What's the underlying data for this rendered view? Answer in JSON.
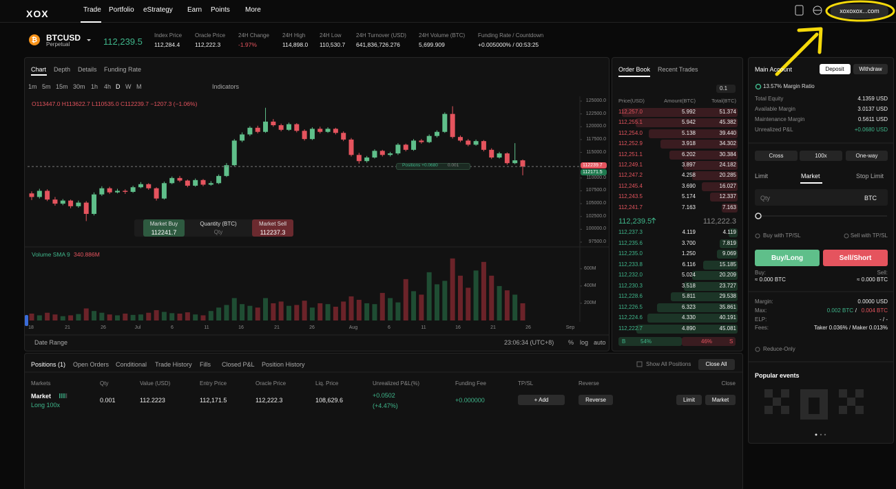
{
  "nav": {
    "logo": "XOX",
    "items": [
      "Trade",
      "Portfolio",
      "eStrategy",
      "Earn",
      "Points",
      "More"
    ],
    "account": "xoxoxox...com"
  },
  "ticker": {
    "symbol": "BTCUSD",
    "sub": "Perpetual",
    "price": "112,239.5",
    "stats": [
      {
        "label": "Index Price",
        "value": "112,284.4"
      },
      {
        "label": "Oracle Price",
        "value": "112,222.3"
      },
      {
        "label": "24H Change",
        "value": "-1.97%"
      },
      {
        "label": "24H High",
        "value": "114,898.0"
      },
      {
        "label": "24H Low",
        "value": "110,530.7"
      },
      {
        "label": "24H Turnover (USD)",
        "value": "641,836,726.276"
      },
      {
        "label": "24H Volume (BTC)",
        "value": "5,699.909"
      },
      {
        "label": "Funding Rate / Countdown",
        "value": "+0.005000% / 00:53:25"
      }
    ]
  },
  "chart": {
    "tabs": [
      "Chart",
      "Depth",
      "Details",
      "Funding Rate"
    ],
    "intervals": [
      "1m",
      "5m",
      "15m",
      "30m",
      "1h",
      "4h",
      "D",
      "W",
      "M"
    ],
    "indicators": "Indicators",
    "ohlc": "O113447.0 H113622.7 L110535.0 C112239.7 −1207.3 (−1.06%)",
    "order_widget": {
      "buy_label": "Market Buy",
      "buy_price": "112241.7",
      "qty_label": "Quantity (BTC)",
      "qty_placeholder": "Qty",
      "sell_label": "Market Sell",
      "sell_price": "112237.3"
    },
    "position_tag": {
      "label": "Positions +0.0680",
      "qty": "0.001"
    },
    "price_tags": [
      "112239.7",
      "112171.5"
    ],
    "volume_legend": {
      "name": "Volume SMA 9",
      "value": "340.886M"
    },
    "candles": [
      [
        107000,
        107400,
        105700,
        106300
      ],
      [
        106300,
        107900,
        106000,
        107500
      ],
      [
        107500,
        107800,
        105500,
        105800
      ],
      [
        105800,
        106300,
        104600,
        105000
      ],
      [
        105000,
        105900,
        104700,
        105600
      ],
      [
        105600,
        105800,
        104100,
        104500
      ],
      [
        104500,
        105600,
        104200,
        105200
      ],
      [
        105200,
        105500,
        101600,
        103000
      ],
      [
        103000,
        107200,
        102700,
        106800
      ],
      [
        106800,
        108400,
        106500,
        108000
      ],
      [
        108000,
        108300,
        106900,
        107200
      ],
      [
        107200,
        107900,
        107000,
        107500
      ],
      [
        107500,
        107800,
        106900,
        107300
      ],
      [
        107300,
        108500,
        107100,
        108200
      ],
      [
        108200,
        109200,
        108000,
        108800
      ],
      [
        108800,
        109000,
        107700,
        108000
      ],
      [
        108000,
        108200,
        105600,
        106000
      ],
      [
        106000,
        109300,
        105800,
        109000
      ],
      [
        109000,
        110300,
        108800,
        110000
      ],
      [
        110000,
        110400,
        109200,
        109500
      ],
      [
        109500,
        109700,
        108200,
        108500
      ],
      [
        108500,
        109900,
        108300,
        109600
      ],
      [
        109600,
        109800,
        108400,
        108700
      ],
      [
        108700,
        109400,
        108500,
        109000
      ],
      [
        109000,
        110700,
        108800,
        110400
      ],
      [
        110400,
        112900,
        110200,
        112500
      ],
      [
        112500,
        117600,
        112300,
        117300
      ],
      [
        117300,
        118900,
        117000,
        118500
      ],
      [
        118500,
        120100,
        118200,
        119800
      ],
      [
        119800,
        120200,
        118700,
        119000
      ],
      [
        119000,
        123700,
        118800,
        121000
      ],
      [
        121000,
        121500,
        120000,
        120300
      ],
      [
        120300,
        120600,
        119100,
        119400
      ],
      [
        119400,
        120800,
        119200,
        120500
      ],
      [
        120500,
        120700,
        118900,
        119200
      ],
      [
        119200,
        119500,
        117300,
        117600
      ],
      [
        117600,
        119900,
        117400,
        119600
      ],
      [
        119600,
        120000,
        118700,
        119000
      ],
      [
        119000,
        119900,
        118800,
        119600
      ],
      [
        119600,
        119800,
        118500,
        118800
      ],
      [
        118800,
        119100,
        117200,
        117500
      ],
      [
        117500,
        117800,
        114200,
        114500
      ],
      [
        114500,
        114900,
        112800,
        113300
      ],
      [
        113300,
        114300,
        113000,
        114000
      ],
      [
        114000,
        115600,
        113800,
        115300
      ],
      [
        115300,
        115500,
        114200,
        114500
      ],
      [
        114500,
        115100,
        114200,
        114800
      ],
      [
        114800,
        116800,
        114500,
        116500
      ],
      [
        116500,
        116700,
        115200,
        115500
      ],
      [
        115500,
        117600,
        115300,
        117300
      ],
      [
        117300,
        117600,
        116700,
        117000
      ],
      [
        117000,
        118500,
        116800,
        118200
      ],
      [
        118200,
        119300,
        117900,
        119000
      ],
      [
        119000,
        122800,
        118800,
        122500
      ],
      [
        122500,
        124000,
        117700,
        118000
      ],
      [
        118000,
        118300,
        117000,
        117300
      ],
      [
        117300,
        117600,
        116200,
        116500
      ],
      [
        116500,
        117500,
        116300,
        117200
      ],
      [
        117200,
        117400,
        115200,
        115500
      ],
      [
        115500,
        115800,
        113700,
        114000
      ],
      [
        114000,
        115100,
        113800,
        114800
      ],
      [
        114800,
        115000,
        112600,
        112900
      ],
      [
        112900,
        116800,
        112700,
        113447
      ],
      [
        113447.0,
        113622.7,
        110535.0,
        112239.7
      ]
    ],
    "volumes": [
      80,
      60,
      90,
      70,
      50,
      60,
      75,
      140,
      110,
      90,
      70,
      60,
      80,
      65,
      70,
      90,
      120,
      100,
      85,
      80,
      95,
      70,
      60,
      110,
      150,
      180,
      260,
      190,
      170,
      150,
      260,
      200,
      220,
      170,
      180,
      230,
      150,
      200,
      190,
      160,
      220,
      280,
      240,
      200,
      190,
      320,
      260,
      210,
      480,
      340,
      300,
      560,
      420,
      460,
      720,
      520,
      380,
      580,
      680,
      520,
      400,
      350,
      300,
      200
    ],
    "ylim": [
      97100,
      125940
    ],
    "yticks": [
      {
        "value": 125000,
        "label": "125000.0"
      },
      {
        "value": 122500,
        "label": "122500.0"
      },
      {
        "value": 120000,
        "label": "120000.0"
      },
      {
        "value": 117500,
        "label": "117500.0"
      },
      {
        "value": 115000,
        "label": "115000.0"
      },
      {
        "value": 110000,
        "label": "110000.0"
      },
      {
        "value": 107500,
        "label": "107500.0"
      },
      {
        "value": 105000,
        "label": "105000.0"
      },
      {
        "value": 102500,
        "label": "102500.0"
      },
      {
        "value": 100000,
        "label": "100000.0"
      },
      {
        "value": 97500,
        "label": "97500.0"
      }
    ],
    "volume_ylim": [
      0,
      830
    ],
    "volume_yticks": [
      {
        "value": 200,
        "label": "200M"
      },
      {
        "value": 400,
        "label": "400M"
      },
      {
        "value": 600,
        "label": "600M"
      }
    ],
    "xlabels": [
      "18",
      "21",
      "26",
      "Jul",
      "6",
      "11",
      "16",
      "21",
      "26",
      "Aug",
      "6",
      "11",
      "16",
      "21",
      "26",
      "Sep"
    ],
    "footer": {
      "date_range": "Date Range",
      "clock": "23:06:34 (UTC+8)",
      "percent": "%",
      "log": "log",
      "auto": "auto"
    }
  },
  "order_book": {
    "tabs": [
      "Order Book",
      "Recent Trades"
    ],
    "step": "0.1",
    "headers": [
      "Price(USD)",
      "Amount(BTC)",
      "Total(BTC)"
    ],
    "asks": [
      [
        "112,257.0",
        "5.992",
        "51.374"
      ],
      [
        "112,255.1",
        "5.942",
        "45.382"
      ],
      [
        "112,254.0",
        "5.138",
        "39.440"
      ],
      [
        "112,252.9",
        "3.918",
        "34.302"
      ],
      [
        "112,251.1",
        "6.202",
        "30.384"
      ],
      [
        "112,249.1",
        "3.897",
        "24.182"
      ],
      [
        "112,247.2",
        "4.258",
        "20.285"
      ],
      [
        "112,245.4",
        "3.690",
        "16.027"
      ],
      [
        "112,243.5",
        "5.174",
        "12.337"
      ],
      [
        "112,241.7",
        "7.163",
        "7.163"
      ]
    ],
    "last_price": "112,239.5",
    "mark_price": "112,222.3",
    "bids": [
      [
        "112,237.3",
        "4.119",
        "4.119"
      ],
      [
        "112,235.6",
        "3.700",
        "7.819"
      ],
      [
        "112,235.0",
        "1.250",
        "9.069"
      ],
      [
        "112,233.8",
        "6.116",
        "15.185"
      ],
      [
        "112,232.0",
        "5.024",
        "20.209"
      ],
      [
        "112,230.3",
        "3.518",
        "23.727"
      ],
      [
        "112,228.6",
        "5.811",
        "29.538"
      ],
      [
        "112,226.5",
        "6.323",
        "35.861"
      ],
      [
        "112,224.6",
        "4.330",
        "40.191"
      ],
      [
        "112,222.7",
        "4.890",
        "45.081"
      ]
    ],
    "ratio": {
      "buy_label": "B",
      "buy_pct": "54%",
      "sell_pct": "46%",
      "sell_label": "S"
    }
  },
  "account": {
    "title": "Main Account",
    "deposit": "Deposit",
    "withdraw": "Withdraw",
    "margin_ratio": "13.57% Margin Ratio",
    "rows": [
      [
        "Total Equity",
        "4.1359 USD"
      ],
      [
        "Available Margin",
        "3.0137 USD"
      ],
      [
        "Maintenance Margin",
        "0.5611 USD"
      ],
      [
        "Unrealized P&L",
        "+0.0680 USD"
      ]
    ],
    "modes": [
      "Cross",
      "100x",
      "One-way"
    ],
    "order_tabs": [
      "Limit",
      "Market",
      "Stop Limit"
    ],
    "qty": "Qty",
    "unit": "BTC",
    "tpsl": [
      "Buy with TP/SL",
      "Sell with TP/SL"
    ],
    "buy": "Buy/Long",
    "sell": "Sell/Short",
    "buy_label": "Buy:",
    "buy_value": "≈ 0.000 BTC",
    "sell_label": "Sell:",
    "sell_value": "≈ 0.000 BTC",
    "margin_label": "Margin:",
    "margin_value": "0.0000 USD",
    "max_label": "Max:",
    "max_buy": "0.002 BTC",
    "max_slash": "/",
    "max_sell": "0.004 BTC",
    "elp_label": "ELP:",
    "elp_value": "- / -",
    "fees_label": "Fees:",
    "fees_value": "Taker 0.036% / Maker 0.013%",
    "reduce_only": "Reduce-Only",
    "events": "Popular events"
  },
  "positions": {
    "tabs": [
      "Positions (1)",
      "Open Orders",
      "Conditional",
      "Trade History",
      "Fills",
      "Closed P&L",
      "Position History"
    ],
    "show_all": "Show All Positions",
    "close_all": "Close All",
    "headers": [
      "Markets",
      "Qty",
      "Value (USD)",
      "Entry Price",
      "Oracle Price",
      "Liq. Price",
      "Unrealized P&L(%)",
      "Funding Fee",
      "TP/SL",
      "Reverse",
      "Close"
    ],
    "row": {
      "market": "Market",
      "side": "Long 100x",
      "qty": "0.001",
      "value": "112.2223",
      "entry": "112,171.5",
      "oracle": "112,222.3",
      "liq": "108,629.6",
      "pnl": "+0.0502",
      "pnl_pct": "(+4.47%)",
      "funding": "+0.000000",
      "add": "+ Add",
      "reverse": "Reverse",
      "limit": "Limit"
    }
  }
}
